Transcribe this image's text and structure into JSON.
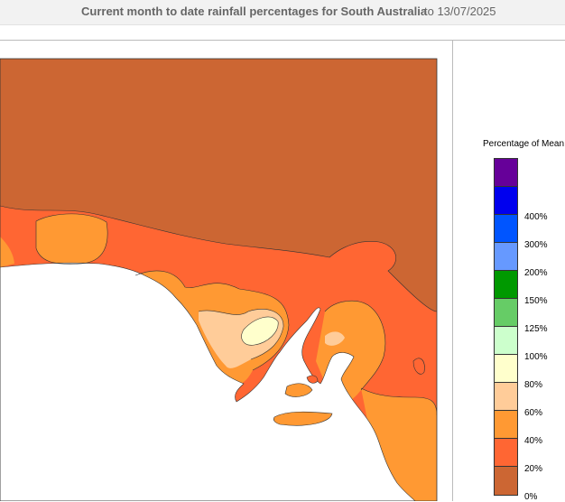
{
  "header": {
    "title": "Current month to date rainfall percentages for South Australia",
    "date": "to 13/07/2025"
  },
  "legend": {
    "title": "Percentage of Mean",
    "items": [
      {
        "label": "",
        "color": "#660099"
      },
      {
        "label": "400%",
        "color": "#0000ee"
      },
      {
        "label": "300%",
        "color": "#0055ff"
      },
      {
        "label": "200%",
        "color": "#6699ff"
      },
      {
        "label": "150%",
        "color": "#009900"
      },
      {
        "label": "125%",
        "color": "#66cc66"
      },
      {
        "label": "100%",
        "color": "#ccffcc"
      },
      {
        "label": "80%",
        "color": "#ffffcc"
      },
      {
        "label": "60%",
        "color": "#ffcc99"
      },
      {
        "label": "40%",
        "color": "#ff9933"
      },
      {
        "label": "20%",
        "color": "#ff6633"
      },
      {
        "label": "0%",
        "color": "#cc6633"
      }
    ]
  },
  "map": {
    "colors": {
      "land_base": "#cc6633",
      "band_20_40": "#ff6633",
      "band_40_60": "#ff9933",
      "band_60_80": "#ffcc99",
      "band_80_100": "#ffffcc",
      "sea": "#ffffff"
    }
  }
}
